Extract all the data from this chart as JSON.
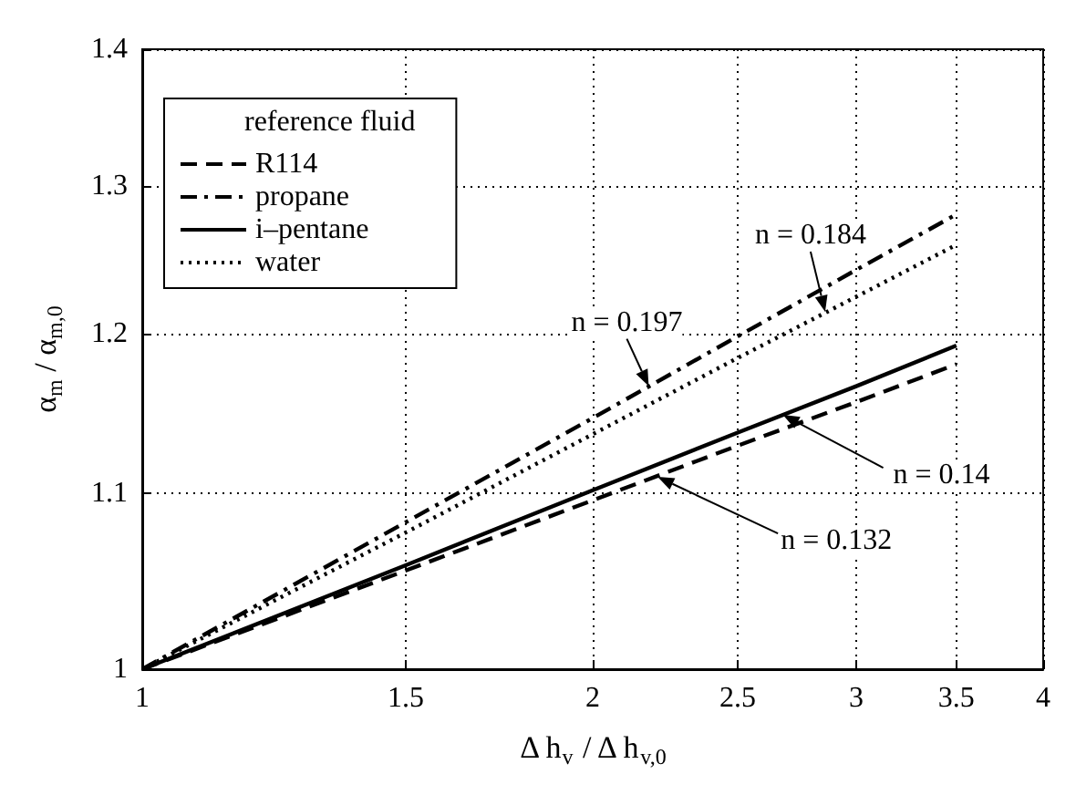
{
  "chart_data": {
    "type": "line",
    "xlabel": "Δ h$_{v}$ / Δ h$_{v,0}$",
    "ylabel": "α$_{m}$ / α$_{m,0}$",
    "legend_title": "reference fluid",
    "legend": "top left",
    "log": "xy",
    "grid": true,
    "marker": "none",
    "x": [
      1,
      1.5,
      2,
      2.5,
      3,
      3.5
    ],
    "xlim": [
      1,
      4
    ],
    "xticks": [
      1,
      1.5,
      2,
      2.5,
      3,
      3.5,
      4
    ],
    "ylim": [
      1,
      1.4
    ],
    "yticks": [
      1,
      1.1,
      1.2,
      1.3,
      1.4
    ],
    "series": [
      {
        "name": "R114",
        "color": "#000000",
        "line_style": "dashed",
        "values": [
          1,
          1.055,
          1.096,
          1.129,
          1.156,
          1.18
        ]
      },
      {
        "name": "propane",
        "color": "#000000",
        "line_style": "dashdot",
        "values": [
          1,
          1.083,
          1.146,
          1.198,
          1.242,
          1.28
        ]
      },
      {
        "name": "i‒pentane",
        "color": "#000000",
        "line_style": "solid",
        "values": [
          1,
          1.058,
          1.102,
          1.137,
          1.166,
          1.192
        ]
      },
      {
        "name": "water",
        "color": "#000000",
        "line_style": "dotted",
        "values": [
          1,
          1.077,
          1.136,
          1.184,
          1.224,
          1.259
        ]
      }
    ],
    "annotations": [
      {
        "text": "n = 0.184",
        "x": 2.86,
        "y": 1.214
      },
      {
        "text": "n = 0.197",
        "x": 2.18,
        "y": 1.166
      },
      {
        "text": "n = 0.14",
        "x": 2.68,
        "y": 1.148
      },
      {
        "text": "n = 0.132",
        "x": 2.21,
        "y": 1.11
      }
    ]
  }
}
